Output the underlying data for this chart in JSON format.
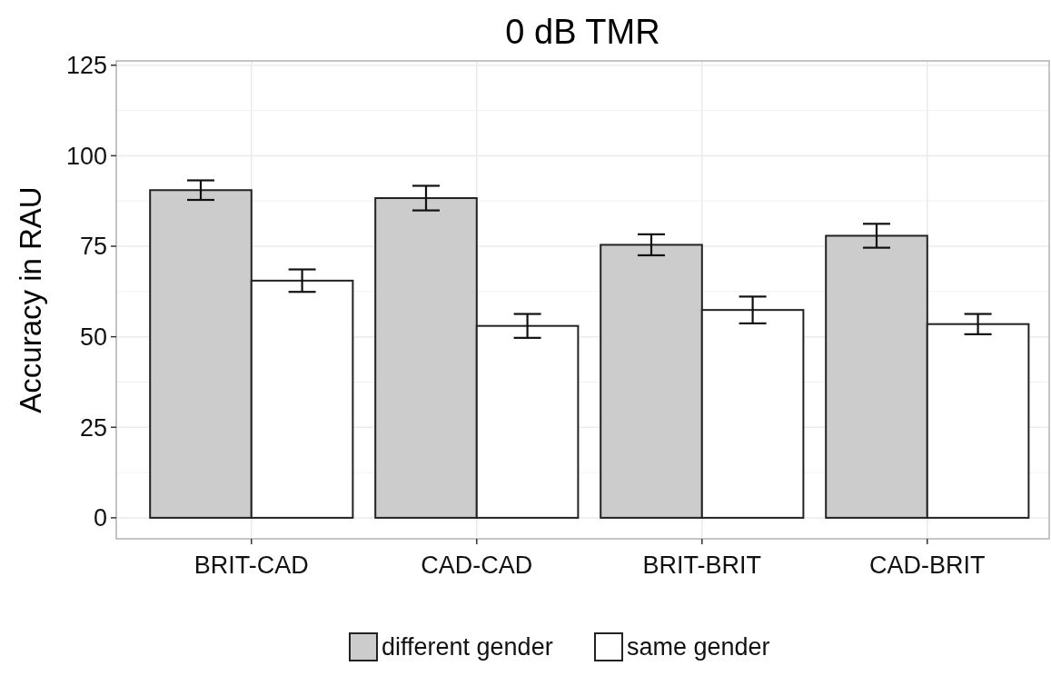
{
  "chart_data": {
    "type": "bar",
    "title": "0 dB TMR",
    "ylabel": "Accuracy in RAU",
    "categories": [
      "BRIT-CAD",
      "CAD-CAD",
      "BRIT-BRIT",
      "CAD-BRIT"
    ],
    "series": [
      {
        "name": "different gender",
        "color": "#cccccc",
        "values": [
          90.5,
          88.3,
          75.4,
          77.9
        ],
        "errors": [
          2.7,
          3.4,
          2.9,
          3.3
        ]
      },
      {
        "name": "same gender",
        "color": "#ffffff",
        "values": [
          65.5,
          53.0,
          57.4,
          53.5
        ],
        "errors": [
          3.1,
          3.3,
          3.7,
          2.8
        ]
      }
    ],
    "ylim": [
      -5.8,
      126.2
    ],
    "yticks": [
      0,
      25,
      50,
      75,
      100,
      125
    ],
    "grid": true,
    "legend": "bottom"
  }
}
